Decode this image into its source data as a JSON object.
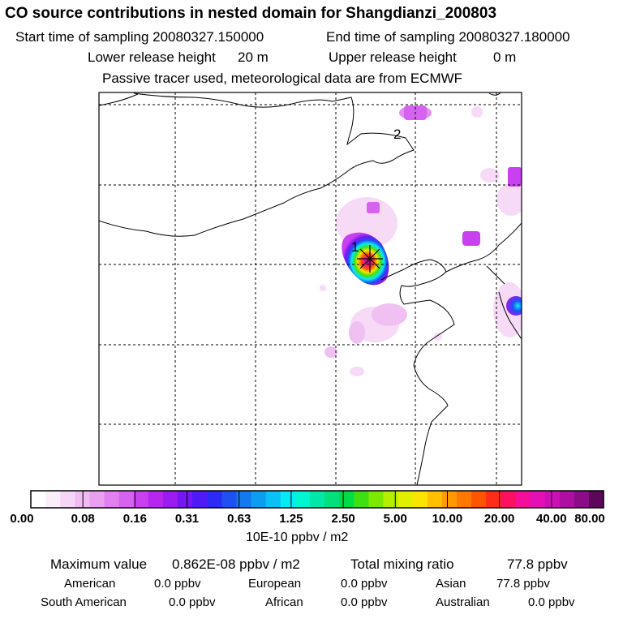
{
  "header": {
    "title": "CO  source contributions in nested domain for Shangdianzi_200803",
    "start_label": "Start time of sampling 20080327.150000",
    "end_label": "End time of sampling 20080327.180000",
    "lower_label": "Lower release height",
    "lower_value": "20 m",
    "upper_label": "Upper release height",
    "upper_value": "0 m",
    "note": "Passive tracer used, meteorological data are from ECMWF"
  },
  "map": {
    "marker_1": "1",
    "marker_2": "2",
    "colors": {
      "coast": "#000000",
      "grid": "#000000"
    }
  },
  "colorbar": {
    "ticks": [
      "0.00",
      "0.08",
      "0.16",
      "0.31",
      "0.63",
      "1.25",
      "2.50",
      "5.00",
      "10.00",
      "20.00",
      "40.00",
      "80.00"
    ],
    "units": "10E-10 ppbv / m2",
    "colors": [
      "#ffffff",
      "#fbeefb",
      "#f6d6f6",
      "#f0baf2",
      "#e9a0f0",
      "#e181ef",
      "#d663ef",
      "#c840ef",
      "#b626ee",
      "#9b1cf0",
      "#7417f3",
      "#4e1af6",
      "#2d2af6",
      "#1e50f2",
      "#1478ee",
      "#0d9df0",
      "#0bc0f4",
      "#05ebf6",
      "#00f6d0",
      "#00e8a8",
      "#00e07c",
      "#00dc46",
      "#3ee014",
      "#7de800",
      "#b4ef00",
      "#e1f000",
      "#fbe400",
      "#ffc000",
      "#ff9a00",
      "#ff7800",
      "#ff5400",
      "#ff2c1a",
      "#fc1060",
      "#f40e98",
      "#e410b4",
      "#cc10b6",
      "#ae0fa2",
      "#8c0c88",
      "#5c085a"
    ]
  },
  "stats": {
    "max_label": "Maximum value",
    "max_value": "0.862E-08 ppbv / m2",
    "total_label": "Total mixing ratio",
    "total_value": "77.8 ppbv",
    "regions": [
      {
        "name": "American",
        "value": "0.0 ppbv"
      },
      {
        "name": "European",
        "value": "0.0 ppbv"
      },
      {
        "name": "Asian",
        "value": "77.8 ppbv"
      },
      {
        "name": "South American",
        "value": "0.0 ppbv"
      },
      {
        "name": "African",
        "value": "0.0 ppbv"
      },
      {
        "name": "Australian",
        "value": "0.0 ppbv"
      }
    ]
  }
}
